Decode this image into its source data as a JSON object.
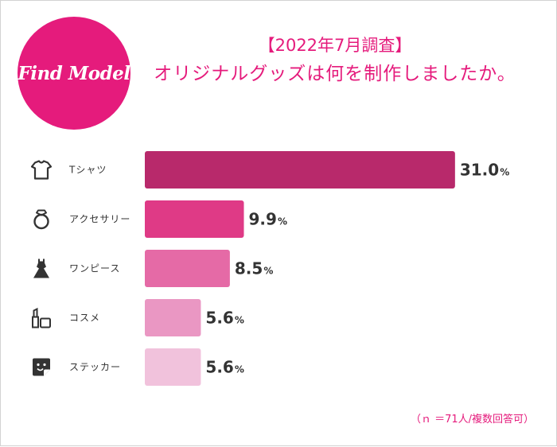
{
  "brand": {
    "logo_text": "Find Model",
    "logo_color": "#e51b7c"
  },
  "title": {
    "line1": "【2022年7月調査】",
    "line2": "オリジナルグッズは何を制作しましたか。"
  },
  "note": "（ｎ ＝71人/複数回答可）",
  "chart_data": {
    "type": "bar",
    "orientation": "horizontal",
    "title": "オリジナルグッズは何を制作しましたか。",
    "unit": "%",
    "xlim": [
      0,
      33
    ],
    "categories": [
      "Tシャツ",
      "アクセサリー",
      "ワンピース",
      "コスメ",
      "ステッカー"
    ],
    "values": [
      31.0,
      9.9,
      8.5,
      5.6,
      5.6
    ],
    "value_labels": [
      "31.0",
      "9.9",
      "8.5",
      "5.6",
      "5.6"
    ],
    "icons": [
      "tshirt-icon",
      "ring-icon",
      "dress-icon",
      "cosmetics-icon",
      "sticker-icon"
    ],
    "colors": [
      "#b8296b",
      "#df3a86",
      "#e56aa6",
      "#ea97c3",
      "#f1c2dc"
    ]
  }
}
